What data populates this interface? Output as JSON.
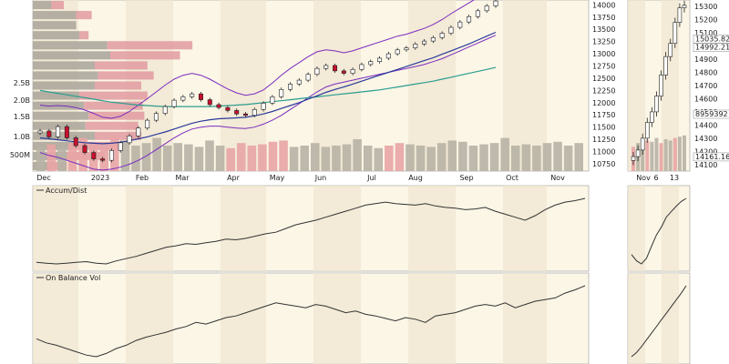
{
  "colors": {
    "page_bg": "#ffffff",
    "panel_bg": "#fbf6e6",
    "band_alt": "#efe6d0",
    "up_candle": "#ffffff",
    "down_candle": "#c8102e",
    "candle_outline": "#222222",
    "bollinger": "#7b2cbf",
    "sma_long": "#2a9d8f",
    "sma_mid": "#2b3a9a",
    "volume_up": "#b7b2a5",
    "volume_down": "#e8a5a5",
    "price_by_volume_gray": "#a8a39a",
    "price_by_volume_red": "#e19aa0",
    "indicator_line": "#333333"
  },
  "chart_data": [
    {
      "panel": "price",
      "type": "candlestick",
      "x_tick_labels": [
        "Dec",
        "2023",
        "Feb",
        "Mar",
        "Apr",
        "May",
        "Jun",
        "Jul",
        "Aug",
        "Sep",
        "Oct",
        "Nov"
      ],
      "y_tick_labels": [
        "14000",
        "13750",
        "13500",
        "13250",
        "13000",
        "12750",
        "12500",
        "12250",
        "12000",
        "11750",
        "11500",
        "11250",
        "11000",
        "10750"
      ],
      "volume_tick_labels": [
        "2.5B",
        "2.0B",
        "1.5B",
        "1.0B",
        "500M"
      ],
      "ylim": [
        10600,
        14100
      ],
      "closes": [
        11420,
        11300,
        11510,
        11280,
        11120,
        10980,
        10850,
        10820,
        11020,
        11180,
        11320,
        11480,
        11640,
        11780,
        11920,
        12050,
        12120,
        12180,
        12060,
        11960,
        11900,
        11840,
        11770,
        11740,
        11860,
        11990,
        12120,
        12270,
        12380,
        12460,
        12580,
        12700,
        12760,
        12650,
        12600,
        12680,
        12780,
        12840,
        12910,
        13000,
        13080,
        13120,
        13200,
        13260,
        13330,
        13420,
        13540,
        13650,
        13760,
        13880,
        13980,
        14080
      ],
      "bollinger_upper": [
        11950,
        11930,
        11940,
        11930,
        11900,
        11850,
        11780,
        11700,
        11680,
        11720,
        11820,
        11950,
        12080,
        12220,
        12360,
        12480,
        12560,
        12600,
        12560,
        12480,
        12380,
        12280,
        12200,
        12150,
        12180,
        12260,
        12400,
        12560,
        12700,
        12820,
        12940,
        13040,
        13080,
        13060,
        13020,
        13060,
        13120,
        13180,
        13240,
        13300,
        13360,
        13400,
        13460,
        13520,
        13600,
        13700,
        13820,
        13930,
        14040,
        14150,
        14250,
        14350
      ],
      "bollinger_lower": [
        10980,
        10920,
        10880,
        10820,
        10760,
        10700,
        10640,
        10620,
        10640,
        10680,
        10740,
        10820,
        10920,
        11040,
        11160,
        11280,
        11380,
        11460,
        11500,
        11520,
        11520,
        11500,
        11480,
        11470,
        11500,
        11560,
        11640,
        11740,
        11860,
        11980,
        12100,
        12220,
        12320,
        12380,
        12420,
        12460,
        12500,
        12540,
        12580,
        12620,
        12660,
        12700,
        12740,
        12780,
        12840,
        12900,
        12980,
        13060,
        13140,
        13220,
        13300,
        13380
      ],
      "sma_mid": [
        11280,
        11260,
        11240,
        11220,
        11200,
        11180,
        11170,
        11160,
        11170,
        11190,
        11220,
        11260,
        11300,
        11350,
        11400,
        11460,
        11520,
        11580,
        11620,
        11650,
        11670,
        11680,
        11690,
        11700,
        11730,
        11770,
        11820,
        11880,
        11940,
        12000,
        12070,
        12140,
        12210,
        12270,
        12320,
        12380,
        12440,
        12500,
        12560,
        12620,
        12680,
        12740,
        12800,
        12860,
        12920,
        12990,
        13060,
        13130,
        13200,
        13280,
        13360,
        13440
      ],
      "sma_long": [
        12250,
        12220,
        12190,
        12160,
        12130,
        12100,
        12070,
        12040,
        12010,
        11990,
        11970,
        11950,
        11940,
        11930,
        11920,
        11920,
        11920,
        11920,
        11920,
        11920,
        11930,
        11940,
        11950,
        11960,
        11980,
        12000,
        12020,
        12040,
        12060,
        12080,
        12100,
        12120,
        12140,
        12160,
        12180,
        12200,
        12220,
        12240,
        12260,
        12290,
        12320,
        12350,
        12380,
        12410,
        12440,
        12480,
        12520,
        12560,
        12600,
        12640,
        12680,
        12720
      ],
      "price_by_volume_bars": [
        {
          "price": 13950,
          "up": 0.12,
          "down": 0.08
        },
        {
          "price": 13750,
          "up": 0.28,
          "down": 0.1
        },
        {
          "price": 13550,
          "up": 0.28,
          "down": 0.0
        },
        {
          "price": 13350,
          "up": 0.3,
          "down": 0.06
        },
        {
          "price": 13150,
          "up": 0.48,
          "down": 0.55
        },
        {
          "price": 12950,
          "up": 0.5,
          "down": 0.45
        },
        {
          "price": 12750,
          "up": 0.4,
          "down": 0.34
        },
        {
          "price": 12550,
          "up": 0.42,
          "down": 0.36
        },
        {
          "price": 12350,
          "up": 0.4,
          "down": 0.3
        },
        {
          "price": 12150,
          "up": 0.3,
          "down": 0.44
        },
        {
          "price": 11950,
          "up": 0.33,
          "down": 0.38
        },
        {
          "price": 11750,
          "up": 0.36,
          "down": 0.36
        },
        {
          "price": 11550,
          "up": 0.34,
          "down": 0.34
        },
        {
          "price": 11350,
          "up": 0.4,
          "down": 0.3
        },
        {
          "price": 11150,
          "up": 0.28,
          "down": 0.3
        },
        {
          "price": 10950,
          "up": 0.22,
          "down": 0.24
        },
        {
          "price": 10750,
          "up": 0.12,
          "down": 0.1
        }
      ],
      "volume": [
        0.95,
        1.05,
        0.9,
        1.1,
        1.3,
        1.0,
        0.9,
        1.4,
        1.2,
        1.0,
        1.1,
        1.3,
        1.0,
        1.1,
        1.05,
        0.95,
        1.2,
        1.0,
        0.9,
        1.1,
        1.0,
        1.05,
        1.15,
        1.2,
        0.95,
        1.0,
        1.1,
        0.95,
        1.0,
        1.05,
        1.25,
        1.0,
        0.9,
        1.0,
        1.1,
        1.05,
        1.0,
        0.95,
        1.1,
        1.2,
        1.15,
        1.0,
        1.05,
        1.1,
        1.3,
        1.0,
        1.05,
        1.0,
        1.1,
        1.15,
        1.0,
        1.1
      ]
    },
    {
      "panel": "inset-price",
      "type": "candlestick",
      "x_tick_labels": [
        "Nov",
        "6",
        "13"
      ],
      "y_tick_labels": [
        "15300",
        "15200",
        "15100",
        "15000",
        "14900",
        "14800",
        "14700",
        "14600",
        "14500",
        "14400",
        "14300",
        "14200",
        "14100"
      ],
      "price_labels": [
        "15035.82",
        "14992.21",
        "8959392",
        "14161.16"
      ],
      "ylim": [
        14050,
        15350
      ],
      "closes": [
        14160,
        14210,
        14300,
        14420,
        14500,
        14620,
        14780,
        14920,
        15020,
        15180,
        15290,
        15310
      ],
      "volume": [
        0.95,
        1.1,
        1.05,
        1.2,
        1.15,
        1.3,
        1.1,
        1.25,
        1.2,
        1.3,
        1.35,
        1.4
      ]
    },
    {
      "panel": "accum-dist",
      "type": "line",
      "title": "Accum/Dist",
      "values": [
        10,
        9,
        8,
        9,
        10,
        11,
        9,
        8,
        12,
        15,
        18,
        22,
        26,
        30,
        32,
        35,
        34,
        36,
        38,
        41,
        40,
        42,
        45,
        48,
        50,
        55,
        60,
        63,
        66,
        70,
        74,
        78,
        82,
        86,
        88,
        90,
        88,
        87,
        86,
        88,
        85,
        83,
        82,
        80,
        81,
        83,
        78,
        74,
        70,
        66,
        72,
        80,
        86,
        90,
        92,
        95
      ]
    },
    {
      "panel": "inset-accum-dist",
      "type": "line",
      "values": [
        20,
        12,
        8,
        15,
        30,
        45,
        55,
        68,
        75,
        82,
        88,
        92
      ]
    },
    {
      "panel": "obv",
      "type": "line",
      "title": "On Balance Vol",
      "values": [
        30,
        25,
        22,
        18,
        14,
        10,
        8,
        12,
        18,
        22,
        28,
        32,
        35,
        38,
        42,
        45,
        50,
        48,
        52,
        56,
        58,
        62,
        66,
        70,
        74,
        72,
        70,
        68,
        72,
        70,
        66,
        62,
        64,
        60,
        58,
        55,
        52,
        56,
        54,
        50,
        58,
        60,
        62,
        66,
        70,
        72,
        70,
        74,
        68,
        72,
        76,
        78,
        80,
        86,
        90,
        95
      ]
    },
    {
      "panel": "inset-obv",
      "type": "line",
      "values": [
        10,
        15,
        22,
        30,
        38,
        46,
        54,
        62,
        70,
        78,
        86,
        95
      ]
    }
  ]
}
